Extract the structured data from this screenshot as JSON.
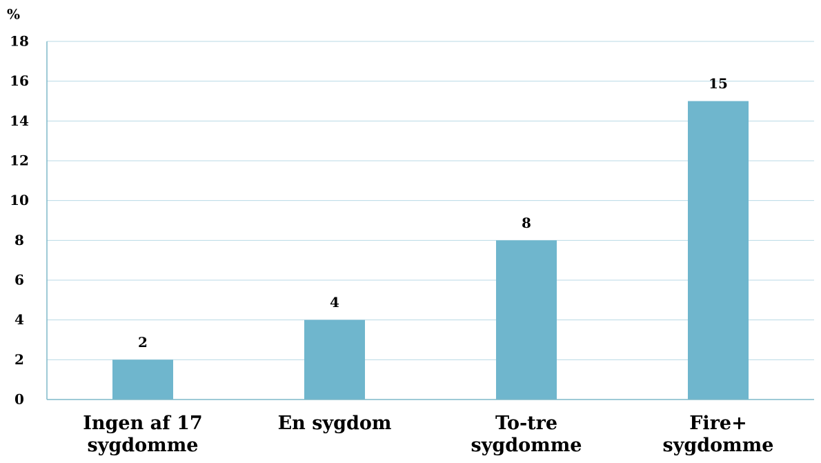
{
  "chart_data": {
    "type": "bar",
    "y_label": "%",
    "categories": [
      "Ingen af 17 sygdomme",
      "En sygdom",
      "To-tre sygdomme",
      "Fire+ sygdomme"
    ],
    "values": [
      2,
      4,
      8,
      15
    ],
    "color": "#6fb6cd",
    "ylim": [
      0,
      18
    ],
    "yticks": [
      0,
      2,
      4,
      6,
      8,
      10,
      12,
      14,
      16,
      18
    ],
    "grid": true
  }
}
